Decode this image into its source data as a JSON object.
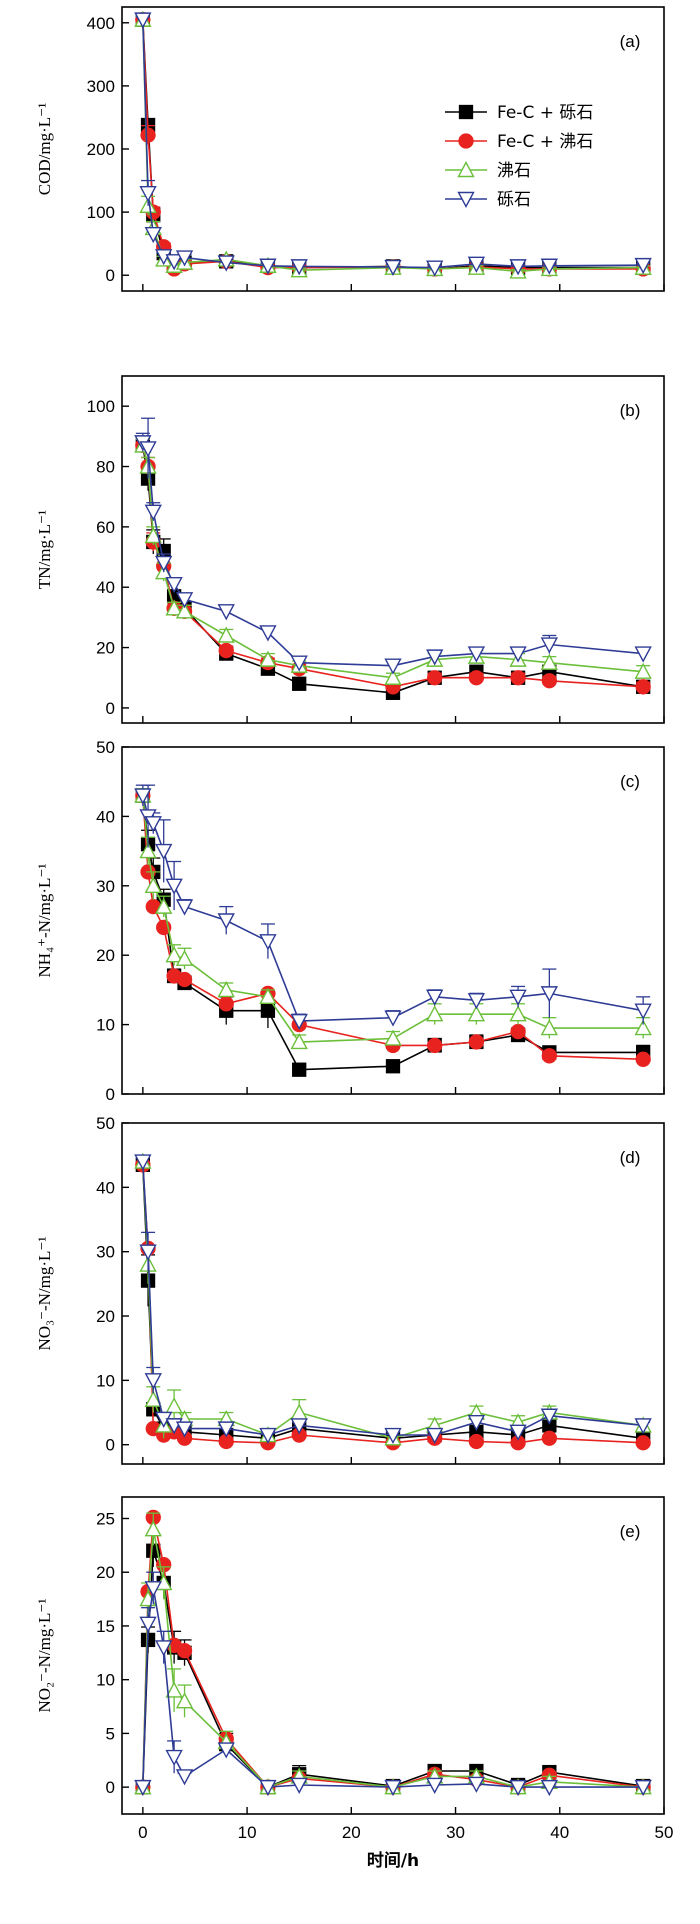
{
  "figure": {
    "xlabel": "时间/h",
    "legend": [
      "Fe-C + 砾石",
      "Fe-C + 沸石",
      "沸石",
      "砾石"
    ]
  },
  "colors": {
    "s0": "#000000",
    "s1": "#e8231f",
    "s2": "#6bbf3a",
    "s3": "#2f3c96"
  },
  "chart_data": [
    {
      "type": "line",
      "panel": "(a)",
      "ylabel": "COD/mg·L⁻¹",
      "ylim": [
        -25,
        425
      ],
      "yticks": [
        0,
        100,
        200,
        300,
        400
      ],
      "xlim": [
        -2,
        50
      ],
      "xticks": [
        0,
        10,
        20,
        30,
        40,
        50
      ],
      "legend_position": "top-right",
      "x": [
        0,
        0.5,
        1,
        2,
        3,
        4,
        8,
        12,
        15,
        24,
        28,
        32,
        36,
        39,
        48
      ],
      "series": [
        {
          "name": "Fe-C + 砾石",
          "values": [
            405,
            238,
            95,
            35,
            18,
            20,
            22,
            15,
            12,
            14,
            10,
            15,
            12,
            12,
            12
          ],
          "err": [
            4,
            10,
            12,
            6,
            4,
            4,
            4,
            4,
            3,
            3,
            3,
            4,
            3,
            3,
            3
          ]
        },
        {
          "name": "Fe-C + 沸石",
          "values": [
            405,
            222,
            100,
            45,
            10,
            18,
            22,
            12,
            12,
            13,
            10,
            13,
            10,
            10,
            10
          ],
          "err": [
            4,
            15,
            8,
            6,
            3,
            4,
            4,
            3,
            3,
            3,
            3,
            3,
            3,
            3,
            3
          ]
        },
        {
          "name": "沸石",
          "values": [
            405,
            110,
            75,
            25,
            15,
            20,
            25,
            15,
            8,
            12,
            10,
            12,
            6,
            10,
            12
          ],
          "err": [
            4,
            15,
            10,
            5,
            5,
            5,
            5,
            4,
            3,
            3,
            3,
            3,
            3,
            3,
            3
          ]
        },
        {
          "name": "砾石",
          "values": [
            405,
            130,
            65,
            30,
            22,
            28,
            20,
            15,
            14,
            13,
            12,
            18,
            14,
            15,
            16
          ],
          "err": [
            4,
            20,
            10,
            8,
            5,
            5,
            5,
            4,
            4,
            4,
            3,
            4,
            3,
            3,
            3
          ]
        }
      ]
    },
    {
      "type": "line",
      "panel": "(b)",
      "ylabel": "TN/mg·L⁻¹",
      "ylim": [
        -5,
        110
      ],
      "yticks": [
        0,
        20,
        40,
        60,
        80,
        100
      ],
      "xlim": [
        -2,
        50
      ],
      "xticks": [
        0,
        10,
        20,
        30,
        40,
        50
      ],
      "x": [
        0,
        0.5,
        1,
        2,
        3,
        4,
        8,
        12,
        15,
        24,
        28,
        32,
        36,
        39,
        48
      ],
      "series": [
        {
          "name": "Fe-C + 砾石",
          "values": [
            87,
            76,
            55,
            52,
            37,
            33,
            18,
            13,
            8,
            5,
            10,
            12,
            10,
            12,
            7
          ],
          "err": [
            2,
            4,
            4,
            4,
            2,
            2,
            1.5,
            1.5,
            1,
            1.5,
            1.5,
            1.5,
            1.5,
            1.5,
            1.5
          ]
        },
        {
          "name": "Fe-C + 沸石",
          "values": [
            87,
            80,
            55,
            47,
            33,
            32,
            19,
            15,
            13,
            7,
            10,
            10,
            10,
            9,
            7
          ],
          "err": [
            2,
            3,
            3,
            3,
            2,
            2,
            1.5,
            1.5,
            1.5,
            1.5,
            1.5,
            1.5,
            1.5,
            1.5,
            1.5
          ]
        },
        {
          "name": "沸石",
          "values": [
            87,
            80,
            57,
            45,
            33,
            32,
            24,
            16,
            14,
            10,
            16,
            17,
            16,
            15,
            12
          ],
          "err": [
            2,
            3,
            3,
            3,
            2,
            2,
            2,
            2,
            1.5,
            1.5,
            2,
            2,
            2,
            2,
            2
          ]
        },
        {
          "name": "砾石",
          "values": [
            88,
            86,
            65,
            48,
            41,
            36,
            32,
            25,
            15,
            14,
            17,
            18,
            18,
            21,
            18
          ],
          "err": [
            3,
            10,
            3,
            3,
            2,
            2,
            2,
            2,
            1.5,
            1.5,
            2,
            2,
            2,
            3,
            2
          ]
        }
      ]
    },
    {
      "type": "line",
      "panel": "(c)",
      "ylabel": "NH₄⁺-N/mg·L⁻¹",
      "ylim": [
        0,
        50
      ],
      "yticks": [
        0,
        10,
        20,
        30,
        40,
        50
      ],
      "xlim": [
        -2,
        50
      ],
      "xticks": [
        0,
        10,
        20,
        30,
        40,
        50
      ],
      "x": [
        0,
        0.5,
        1,
        2,
        3,
        4,
        8,
        12,
        15,
        24,
        28,
        32,
        36,
        39,
        48
      ],
      "series": [
        {
          "name": "Fe-C + 砾石",
          "values": [
            43,
            36,
            32,
            28,
            17,
            16,
            12,
            12,
            3.5,
            4,
            7,
            7.5,
            8.5,
            6,
            6
          ],
          "err": [
            1,
            2,
            2,
            1.5,
            1,
            1,
            2,
            2.5,
            0.5,
            0.5,
            1,
            1,
            1,
            0.5,
            1
          ]
        },
        {
          "name": "Fe-C + 沸石",
          "values": [
            43,
            32,
            27,
            24,
            17,
            16.5,
            13,
            14.5,
            10,
            7,
            7,
            7.5,
            9,
            5.5,
            5
          ]
        },
        {
          "name": "沸石",
          "values": [
            43,
            35,
            30,
            27,
            20,
            19.5,
            15,
            14,
            7.5,
            8,
            11.5,
            11.5,
            11.5,
            9.5,
            9.5
          ],
          "err": [
            1,
            2,
            2,
            1.5,
            1.5,
            1.5,
            1,
            1,
            1,
            1,
            1.5,
            1.5,
            1.5,
            1.5,
            1.5
          ]
        },
        {
          "name": "砾石",
          "values": [
            43,
            40,
            39,
            35,
            30,
            27,
            25,
            22,
            10.5,
            11,
            14,
            13.5,
            14,
            14.5,
            12
          ],
          "err": [
            1.5,
            4.5,
            1.5,
            4.5,
            3.5,
            1,
            2,
            2.5,
            1,
            1,
            1,
            1,
            1.5,
            3.5,
            2
          ]
        }
      ]
    },
    {
      "type": "line",
      "panel": "(d)",
      "ylabel": "NO₃⁻-N/mg·L⁻¹",
      "ylim": [
        -3,
        50
      ],
      "yticks": [
        0,
        10,
        20,
        30,
        40,
        50
      ],
      "xlim": [
        -2,
        50
      ],
      "xticks": [
        0,
        10,
        20,
        30,
        40,
        50
      ],
      "x": [
        0,
        0.5,
        1,
        2,
        3,
        4,
        8,
        12,
        15,
        24,
        28,
        32,
        36,
        39,
        48
      ],
      "series": [
        {
          "name": "Fe-C + 砾石",
          "values": [
            43.5,
            25.5,
            5.5,
            2.5,
            3,
            2,
            1.5,
            1,
            2.5,
            1,
            1.5,
            2,
            1.5,
            3,
            1
          ],
          "err": [
            1,
            4,
            1,
            0.5,
            0.5,
            0.5,
            0.5,
            0.5,
            0.5,
            0.5,
            0.5,
            0.5,
            0.5,
            0.5,
            0.5
          ]
        },
        {
          "name": "Fe-C + 沸石",
          "values": [
            43.5,
            30.5,
            2.5,
            1.5,
            2,
            1,
            0.5,
            0.3,
            1.5,
            0.3,
            1,
            0.5,
            0.3,
            1,
            0.3
          ]
        },
        {
          "name": "沸石",
          "values": [
            44,
            28,
            7,
            3,
            6,
            4,
            4,
            1.5,
            5,
            1,
            3,
            5,
            3.5,
            5,
            3
          ],
          "err": [
            1,
            3,
            2,
            2,
            2.5,
            1,
            1,
            1,
            2,
            1,
            1,
            1,
            1,
            1,
            1
          ]
        },
        {
          "name": "砾石",
          "values": [
            44,
            30,
            10,
            4,
            3,
            2.5,
            2.5,
            1.5,
            3,
            1.5,
            1.5,
            3.5,
            2,
            4.5,
            3
          ],
          "err": [
            1,
            3,
            2,
            1,
            1,
            0.5,
            0.5,
            0.5,
            0.5,
            0.5,
            0.5,
            0.5,
            0.5,
            1,
            0.5
          ]
        }
      ]
    },
    {
      "type": "line",
      "panel": "(e)",
      "ylabel": "NO₂⁻-N/mg·L⁻¹",
      "ylim": [
        -2.5,
        27
      ],
      "yticks": [
        0,
        5,
        10,
        15,
        20,
        25
      ],
      "xlim": [
        -2,
        50
      ],
      "xticks": [
        0,
        10,
        20,
        30,
        40,
        50
      ],
      "x": [
        0,
        0.5,
        1,
        2,
        3,
        4,
        8,
        12,
        15,
        24,
        28,
        32,
        36,
        39,
        48
      ],
      "series": [
        {
          "name": "Fe-C + 砾石",
          "values": [
            0,
            13.7,
            22,
            19,
            13,
            12.5,
            4,
            0,
            1.2,
            0.1,
            1.5,
            1.5,
            0.2,
            1.4,
            0.1
          ],
          "err": [
            0.2,
            1.2,
            1.5,
            1.5,
            1.5,
            1.2,
            1,
            0.5,
            0.8,
            0.3,
            0.5,
            0.5,
            0.3,
            0.4,
            0.3
          ]
        },
        {
          "name": "Fe-C + 沸石",
          "values": [
            0,
            18.2,
            25.1,
            20.7,
            13.2,
            12.7,
            4.5,
            0,
            0.8,
            0,
            1.2,
            0.7,
            0,
            1.1,
            0
          ]
        },
        {
          "name": "沸石",
          "values": [
            0,
            17.5,
            24,
            19,
            9,
            8,
            4.2,
            0,
            1,
            0,
            1,
            1,
            0,
            0.5,
            0
          ],
          "err": [
            0.2,
            1.5,
            1.5,
            1.5,
            2,
            1.5,
            1,
            0.5,
            0.5,
            0.3,
            0.5,
            0.5,
            0.3,
            0.5,
            0.3
          ]
        },
        {
          "name": "砾石",
          "values": [
            0,
            15.2,
            18.5,
            13,
            2.8,
            1,
            3.5,
            0,
            0.2,
            0,
            0.2,
            0.3,
            0,
            0,
            0
          ],
          "err": [
            0.2,
            1.5,
            1.5,
            1.5,
            1.5,
            0.3,
            0.5,
            0.3,
            0.3,
            0.3,
            0.3,
            0.3,
            0.3,
            0.3,
            0.3
          ]
        }
      ]
    }
  ]
}
